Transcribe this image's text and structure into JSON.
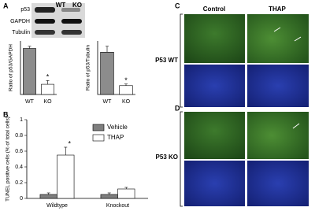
{
  "panels": [
    "A",
    "B",
    "C",
    "D"
  ],
  "blot": {
    "lanes": [
      "WT",
      "KO"
    ],
    "rows": [
      "p53",
      "GAPDH",
      "Tubulin"
    ]
  },
  "images": {
    "columns": [
      "Control",
      "THAP"
    ],
    "rows": [
      "P53 WT",
      "P53 KO"
    ]
  },
  "chart_data": [
    {
      "type": "bar",
      "y_label": "Ratio of p53/GAPDH",
      "categories": [
        "WT",
        "KO"
      ],
      "values": [
        1.72,
        0.38
      ],
      "errors": [
        0.08,
        0.14
      ],
      "colors": [
        "#8c8c8c",
        "#ffffff"
      ],
      "ylim": [
        0,
        2
      ],
      "annotation": "*"
    },
    {
      "type": "bar",
      "y_label": "Ratio of p53/Tubulin",
      "categories": [
        "WT",
        "KO"
      ],
      "values": [
        1.58,
        0.33
      ],
      "errors": [
        0.22,
        0.06
      ],
      "colors": [
        "#8c8c8c",
        "#ffffff"
      ],
      "ylim": [
        0,
        2
      ],
      "annotation": "*"
    },
    {
      "type": "bar",
      "y_label": "TUNEL positive cells (% of total cells)",
      "categories": [
        "Wildtype",
        "Knockout"
      ],
      "series": [
        {
          "name": "Vehicle",
          "color": "#7f7f7f",
          "values": [
            0.05,
            0.05
          ],
          "errors": [
            0.02,
            0.02
          ]
        },
        {
          "name": "THAP",
          "color": "#ffffff",
          "values": [
            0.55,
            0.12
          ],
          "errors": [
            0.1,
            0.02
          ]
        }
      ],
      "ylim": [
        0,
        1
      ],
      "yticks": [
        0,
        0.2,
        0.4,
        0.6,
        0.8,
        1
      ],
      "annotation": "*"
    }
  ]
}
